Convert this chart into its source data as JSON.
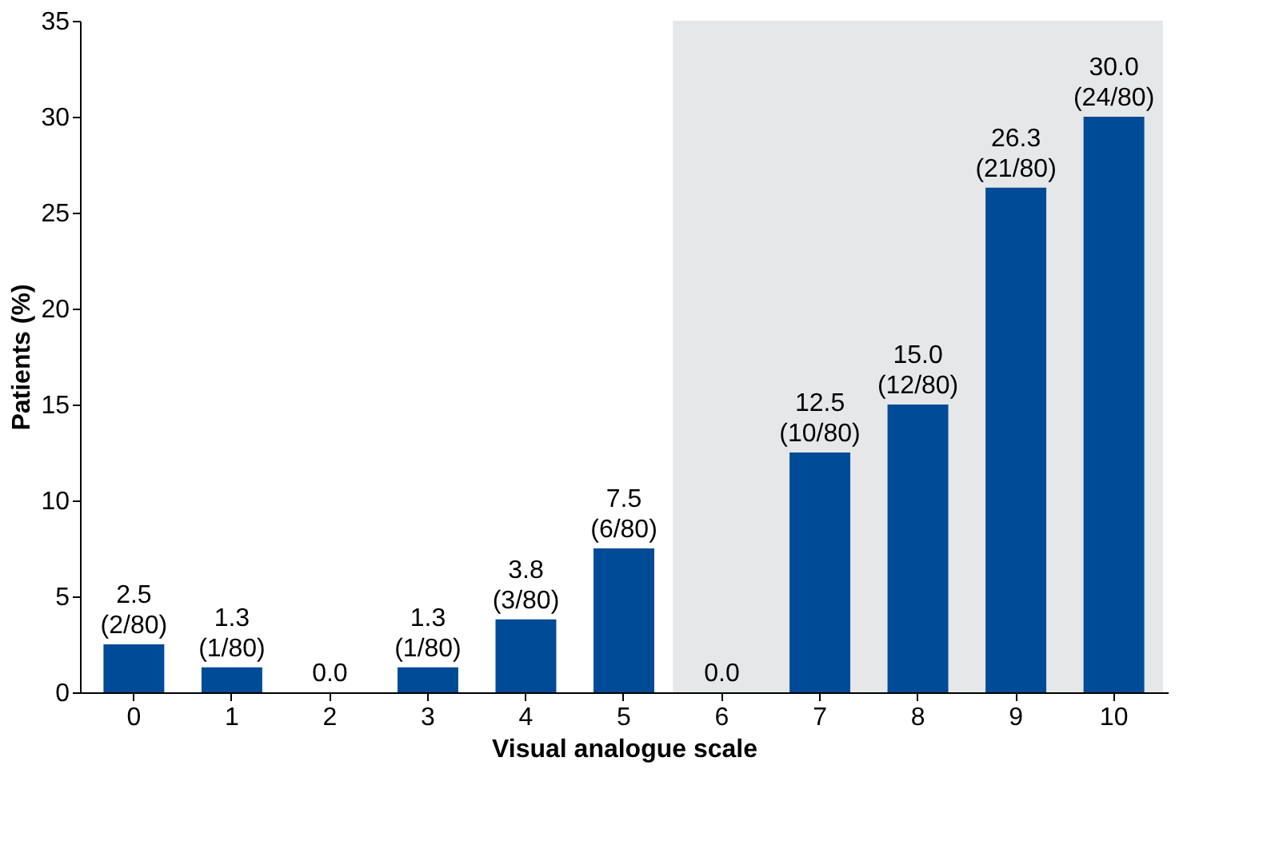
{
  "chart_data": {
    "type": "bar",
    "xlabel": "Visual analogue scale",
    "ylabel": "Patients (%)",
    "categories": [
      "0",
      "1",
      "2",
      "3",
      "4",
      "5",
      "6",
      "7",
      "8",
      "9",
      "10"
    ],
    "values": [
      2.5,
      1.3,
      0.0,
      1.3,
      3.8,
      7.5,
      0.0,
      12.5,
      15.0,
      26.3,
      30.0
    ],
    "value_labels": [
      "2.5\n(2/80)",
      "1.3\n(1/80)",
      "0.0",
      "1.3\n(1/80)",
      "3.8\n(3/80)",
      "7.5\n(6/80)",
      "0.0",
      "12.5\n(10/80)",
      "15.0\n(12/80)",
      "26.3\n(21/80)",
      "30.0\n(24/80)"
    ],
    "color": "#004b97",
    "ylim": [
      0,
      35
    ],
    "yticks": [
      0,
      5,
      10,
      15,
      20,
      25,
      30,
      35
    ],
    "grid": false,
    "bands": [
      {
        "axis": "x",
        "from": "6",
        "to": "10",
        "color": "#e6e7e9"
      }
    ]
  }
}
